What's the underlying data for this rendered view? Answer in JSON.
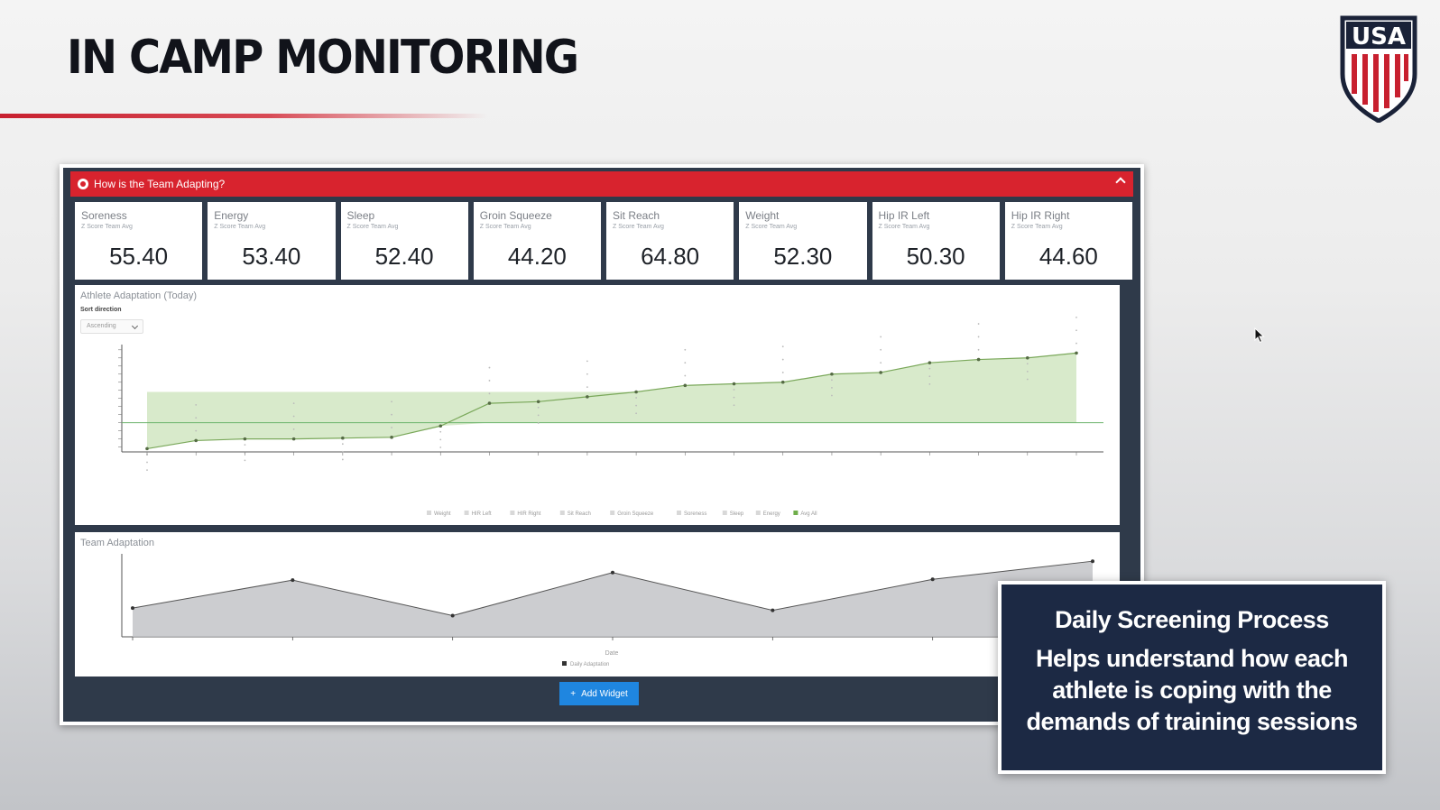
{
  "slide": {
    "title": "IN CAMP MONITORING",
    "logo_text": "USA"
  },
  "colors": {
    "accent_red": "#d8232e",
    "navy": "#1c2944",
    "green": "#8fc46a",
    "blue": "#1f86e0"
  },
  "panel": {
    "header_title": "How is the Team Adapting?"
  },
  "metrics": [
    {
      "label": "Soreness",
      "sub": "Z Score Team Avg",
      "value": "55.40"
    },
    {
      "label": "Energy",
      "sub": "Z Score Team Avg",
      "value": "53.40"
    },
    {
      "label": "Sleep",
      "sub": "Z Score Team Avg",
      "value": "52.40"
    },
    {
      "label": "Groin Squeeze",
      "sub": "Z Score Team Avg",
      "value": "44.20"
    },
    {
      "label": "Sit Reach",
      "sub": "Z Score Team Avg",
      "value": "64.80"
    },
    {
      "label": "Weight",
      "sub": "Z Score Team Avg",
      "value": "52.30"
    },
    {
      "label": "Hip IR Left",
      "sub": "Z Score Team Avg",
      "value": "50.30"
    },
    {
      "label": "Hip IR Right",
      "sub": "Z Score Team Avg",
      "value": "44.60"
    }
  ],
  "athlete_chart": {
    "title": "Athlete Adaptation (Today)",
    "sort_label": "Sort direction",
    "sort_value": "Ascending"
  },
  "team_chart": {
    "title": "Team Adaptation",
    "xlabel": "Date",
    "add_widget_label": "Add Widget"
  },
  "chart_data": [
    {
      "type": "area",
      "title": "Athlete Adaptation (Today)",
      "categories": [
        "",
        "",
        "",
        "",
        "",
        "",
        "",
        "",
        "",
        "",
        "",
        "",
        "",
        "",
        "",
        "",
        "",
        "",
        "",
        ""
      ],
      "series": [
        {
          "name": "Avg All",
          "values": [
            -2.6,
            -2.1,
            -2.0,
            -2.0,
            -1.95,
            -1.9,
            -1.2,
            0.2,
            0.3,
            0.6,
            0.9,
            1.3,
            1.4,
            1.5,
            2.0,
            2.1,
            2.7,
            2.9,
            3.0,
            3.3
          ]
        }
      ],
      "band": [
        -1.0,
        0.9
      ],
      "reference_line": -1.0,
      "legend": [
        "Weight",
        "HIR Left",
        "HIR Right",
        "Sit Reach",
        "Groin Squeeze",
        "Soreness",
        "Sleep",
        "Energy",
        "Avg All"
      ],
      "legend_position": "bottom",
      "ylim": [
        -2.8,
        3.6
      ]
    },
    {
      "type": "area",
      "title": "Team Adaptation",
      "xlabel": "Date",
      "series": [
        {
          "name": "Daily Adaptation",
          "values": [
            0.38,
            0.75,
            0.28,
            0.85,
            0.35,
            0.76,
            1.0
          ]
        }
      ],
      "legend_position": "bottom",
      "ylim": [
        0,
        1.05
      ]
    }
  ]
}
